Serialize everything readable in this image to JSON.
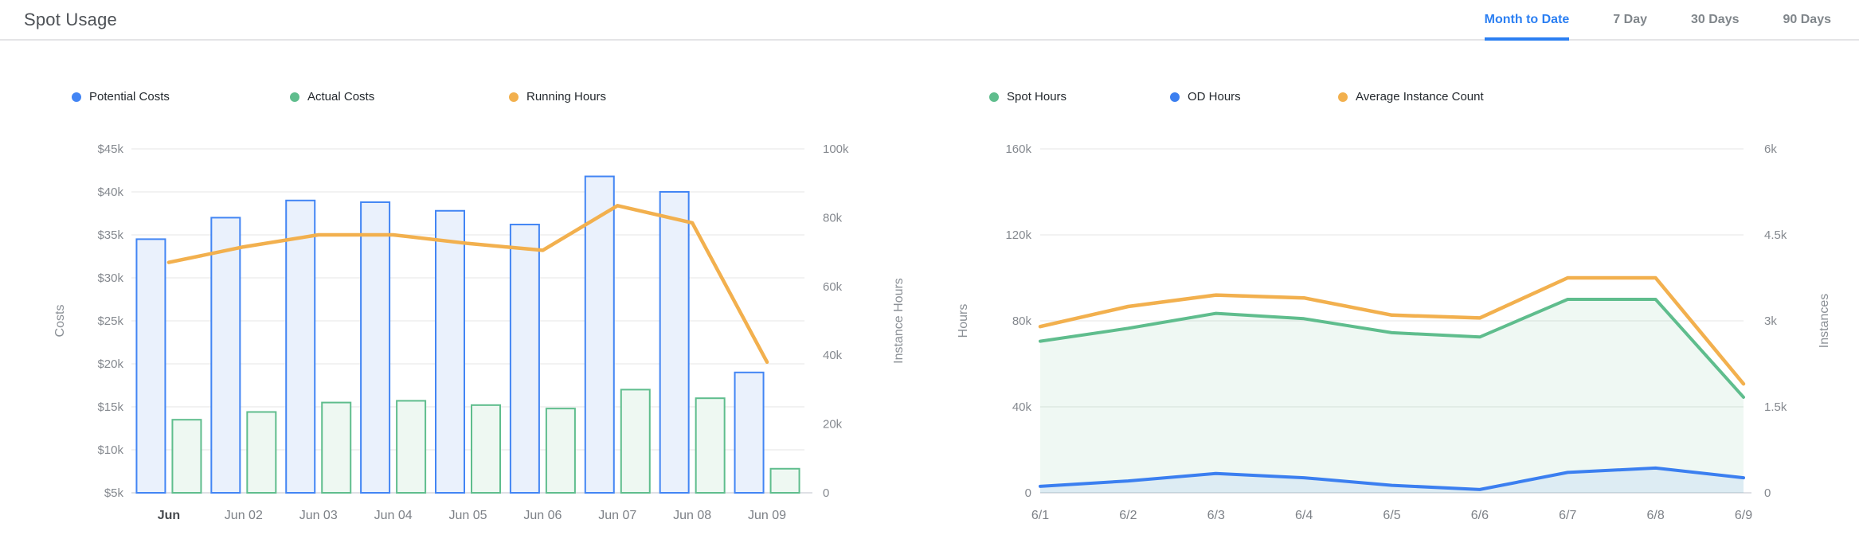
{
  "header": {
    "title": "Spot Usage",
    "tabs": [
      {
        "label": "Month to Date",
        "active": true
      },
      {
        "label": "7 Day",
        "active": false
      },
      {
        "label": "30 Days",
        "active": false
      },
      {
        "label": "90 Days",
        "active": false
      }
    ]
  },
  "colors": {
    "accent_blue": "#2b7ff2",
    "series_blue": "#4285f4",
    "series_blue_fill": "#eaf1fc",
    "series_green": "#5fbd8d",
    "series_green_fill": "#eef8f2",
    "series_orange": "#f2b04e",
    "area_green_fill": "rgba(95,189,141,0.10)",
    "area_blue_fill": "rgba(66,133,244,0.10)",
    "gridline": "#ededed",
    "axis_line": "#dfe1e5"
  },
  "chart_data": [
    {
      "type": "bar",
      "title": "Spot Usage — Costs and Running Hours",
      "categories": [
        "Jun",
        "Jun 02",
        "Jun 03",
        "Jun 04",
        "Jun 05",
        "Jun 06",
        "Jun 07",
        "Jun 08",
        "Jun 09"
      ],
      "series": [
        {
          "name": "Potential Costs",
          "type": "bar",
          "axis": "left",
          "color": "#4285f4",
          "fill_color": "#eaf1fc",
          "values": [
            34500,
            37000,
            39000,
            38800,
            37800,
            36200,
            41800,
            40000,
            19000
          ]
        },
        {
          "name": "Actual Costs",
          "type": "bar",
          "axis": "left",
          "color": "#5fbd8d",
          "fill_color": "#eef8f2",
          "values": [
            13500,
            14400,
            15500,
            15700,
            15200,
            14800,
            17000,
            16000,
            7800
          ]
        },
        {
          "name": "Running Hours",
          "type": "line",
          "axis": "right",
          "color": "#f2b04e",
          "values": [
            67000,
            71500,
            75000,
            75000,
            72500,
            70500,
            83500,
            78500,
            38000
          ]
        }
      ],
      "left_axis": {
        "label": "Costs",
        "min": 5000,
        "max": 45000,
        "tick_labels": [
          "$5k",
          "$10k",
          "$15k",
          "$20k",
          "$25k",
          "$30k",
          "$35k",
          "$40k",
          "$45k"
        ]
      },
      "right_axis": {
        "label": "Instance Hours",
        "min": 0,
        "max": 100000,
        "tick_labels": [
          "0",
          "20k",
          "40k",
          "60k",
          "80k",
          "100k"
        ]
      },
      "grid": true,
      "legend_position": "top",
      "x_axis_bold_first": true
    },
    {
      "type": "area",
      "title": "Spot Usage — Hours and Instances",
      "categories": [
        "6/1",
        "6/2",
        "6/3",
        "6/4",
        "6/5",
        "6/6",
        "6/7",
        "6/8",
        "6/9"
      ],
      "series": [
        {
          "name": "Spot Hours",
          "type": "area",
          "axis": "left",
          "color": "#5fbd8d",
          "fill_color": "rgba(95,189,141,0.10)",
          "values": [
            70500,
            76500,
            83500,
            81000,
            74500,
            72500,
            90000,
            90000,
            44500
          ]
        },
        {
          "name": "OD Hours",
          "type": "area",
          "axis": "left",
          "color": "#3b7ff0",
          "fill_color": "rgba(66,133,244,0.10)",
          "values": [
            3000,
            5500,
            9000,
            7000,
            3500,
            1500,
            9500,
            11500,
            7000
          ]
        },
        {
          "name": "Average Instance Count",
          "type": "line",
          "axis": "right",
          "color": "#f2b04e",
          "values": [
            2900,
            3250,
            3450,
            3400,
            3100,
            3050,
            3750,
            3750,
            1900
          ]
        }
      ],
      "left_axis": {
        "label": "Hours",
        "min": 0,
        "max": 160000,
        "tick_labels": [
          "0",
          "40k",
          "80k",
          "120k",
          "160k"
        ]
      },
      "right_axis": {
        "label": "Instances",
        "min": 0,
        "max": 6000,
        "tick_labels": [
          "0",
          "1.5k",
          "3k",
          "4.5k",
          "6k"
        ]
      },
      "grid": true,
      "legend_position": "top",
      "x_axis_bold_first": false
    }
  ]
}
